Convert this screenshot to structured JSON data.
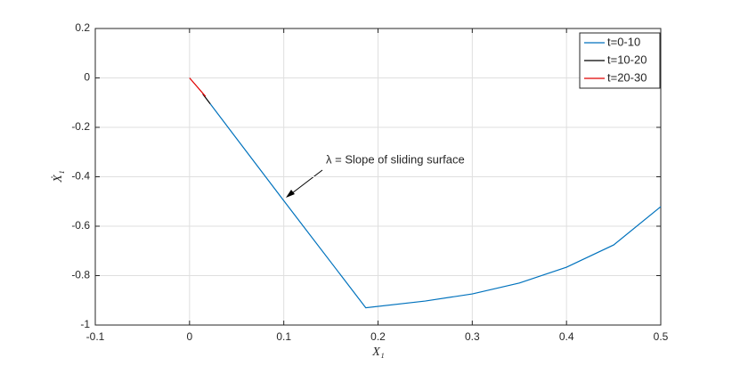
{
  "chart_data": {
    "type": "line",
    "xlabel": "X₁",
    "ylabel": "Ẋ₁",
    "annotation": "λ = Slope of sliding surface",
    "series": [
      {
        "name": "t=0-10",
        "color": "#0072bd",
        "x": [
          0.5,
          0.45,
          0.4,
          0.35,
          0.3,
          0.25,
          0.187,
          0.1,
          0.022
        ],
        "values": [
          -0.521,
          -0.676,
          -0.766,
          -0.83,
          -0.874,
          -0.903,
          -0.93,
          -0.497,
          -0.105
        ]
      },
      {
        "name": "t=10-20",
        "color": "#000000",
        "x": [
          0.022,
          0.014
        ],
        "values": [
          -0.105,
          -0.065
        ]
      },
      {
        "name": "t=20-30",
        "color": "#e00000",
        "x": [
          0.017,
          0
        ],
        "values": [
          -0.075,
          0
        ]
      }
    ],
    "xlim": [
      -0.1,
      0.5
    ],
    "xticks": [
      -0.1,
      0,
      0.1,
      0.2,
      0.3,
      0.4,
      0.5
    ],
    "ylim": [
      -1,
      0.2
    ],
    "yticks": [
      -1,
      -0.8,
      -0.6,
      -0.4,
      -0.2,
      0,
      0.2
    ],
    "grid": true,
    "legend": "northeast"
  }
}
